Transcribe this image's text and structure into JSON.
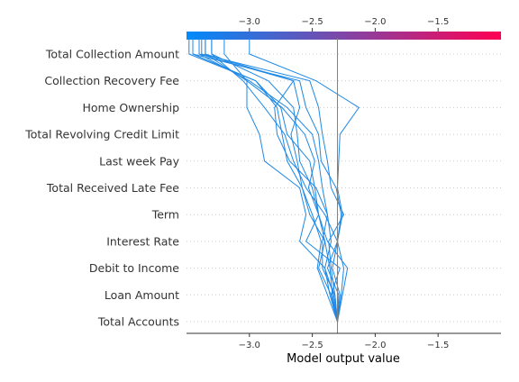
{
  "chart_data": {
    "type": "line",
    "title": "",
    "xlabel": "Model output value",
    "xlim": [
      -3.5,
      -1.0
    ],
    "x_ticks": [
      -3.0,
      -2.5,
      -2.0,
      -1.5
    ],
    "x_tick_labels": [
      "−3.0",
      "−2.5",
      "−2.0",
      "−1.5"
    ],
    "base_value": -2.3,
    "colorbar": {
      "from": "#008bfb",
      "to": "#ff0052"
    },
    "line_color": "#1e88e5",
    "grid": "dotted-horizontal",
    "features": [
      "Total Accounts",
      "Loan Amount",
      "Debit to Income",
      "Interest Rate",
      "Term",
      "Total Received Late Fee",
      "Last week Pay",
      "Total Revolving Credit Limit",
      "Home Ownership",
      "Collection Recovery Fee",
      "Total Collection Amount"
    ],
    "series": [
      {
        "values": [
          -2.3,
          -2.33,
          -2.4,
          -2.35,
          -2.38,
          -2.42,
          -2.45,
          -2.5,
          -2.7,
          -3.0,
          -3.4
        ]
      },
      {
        "values": [
          -2.3,
          -2.26,
          -2.22,
          -2.38,
          -2.45,
          -2.5,
          -2.6,
          -2.62,
          -2.65,
          -2.85,
          -3.3
        ]
      },
      {
        "values": [
          -2.3,
          -2.35,
          -2.28,
          -2.55,
          -2.45,
          -2.48,
          -2.52,
          -2.7,
          -2.75,
          -2.95,
          -3.45
        ]
      },
      {
        "values": [
          -2.3,
          -2.28,
          -2.34,
          -2.3,
          -2.26,
          -2.3,
          -2.29,
          -2.28,
          -2.13,
          -2.47,
          -3.0
        ]
      },
      {
        "values": [
          -2.3,
          -2.38,
          -2.46,
          -2.43,
          -2.5,
          -2.58,
          -2.62,
          -2.67,
          -2.6,
          -2.65,
          -3.35
        ]
      },
      {
        "values": [
          -2.3,
          -2.32,
          -2.35,
          -2.37,
          -2.25,
          -2.35,
          -2.38,
          -2.42,
          -2.45,
          -2.52,
          -3.38
        ]
      },
      {
        "values": [
          -2.3,
          -2.34,
          -2.36,
          -2.4,
          -2.52,
          -2.58,
          -2.7,
          -2.74,
          -2.78,
          -2.95,
          -3.48
        ]
      },
      {
        "values": [
          -2.3,
          -2.29,
          -2.38,
          -2.3,
          -2.27,
          -2.31,
          -2.43,
          -2.45,
          -2.55,
          -2.6,
          -3.45
        ]
      },
      {
        "values": [
          -2.3,
          -2.36,
          -2.4,
          -2.6,
          -2.55,
          -2.6,
          -2.88,
          -2.92,
          -3.02,
          -3.02,
          -3.35
        ]
      },
      {
        "values": [
          -2.3,
          -2.27,
          -2.25,
          -2.3,
          -2.4,
          -2.55,
          -2.65,
          -2.72,
          -2.88,
          -3.05,
          -3.3
        ]
      },
      {
        "values": [
          -2.3,
          -2.32,
          -2.42,
          -2.42,
          -2.38,
          -2.47,
          -2.68,
          -2.78,
          -2.8,
          -2.65,
          -3.4
        ]
      },
      {
        "values": [
          -2.3,
          -2.35,
          -2.45,
          -2.4,
          -2.45,
          -2.53,
          -2.48,
          -2.56,
          -2.74,
          -3.02,
          -3.2
        ]
      }
    ]
  }
}
